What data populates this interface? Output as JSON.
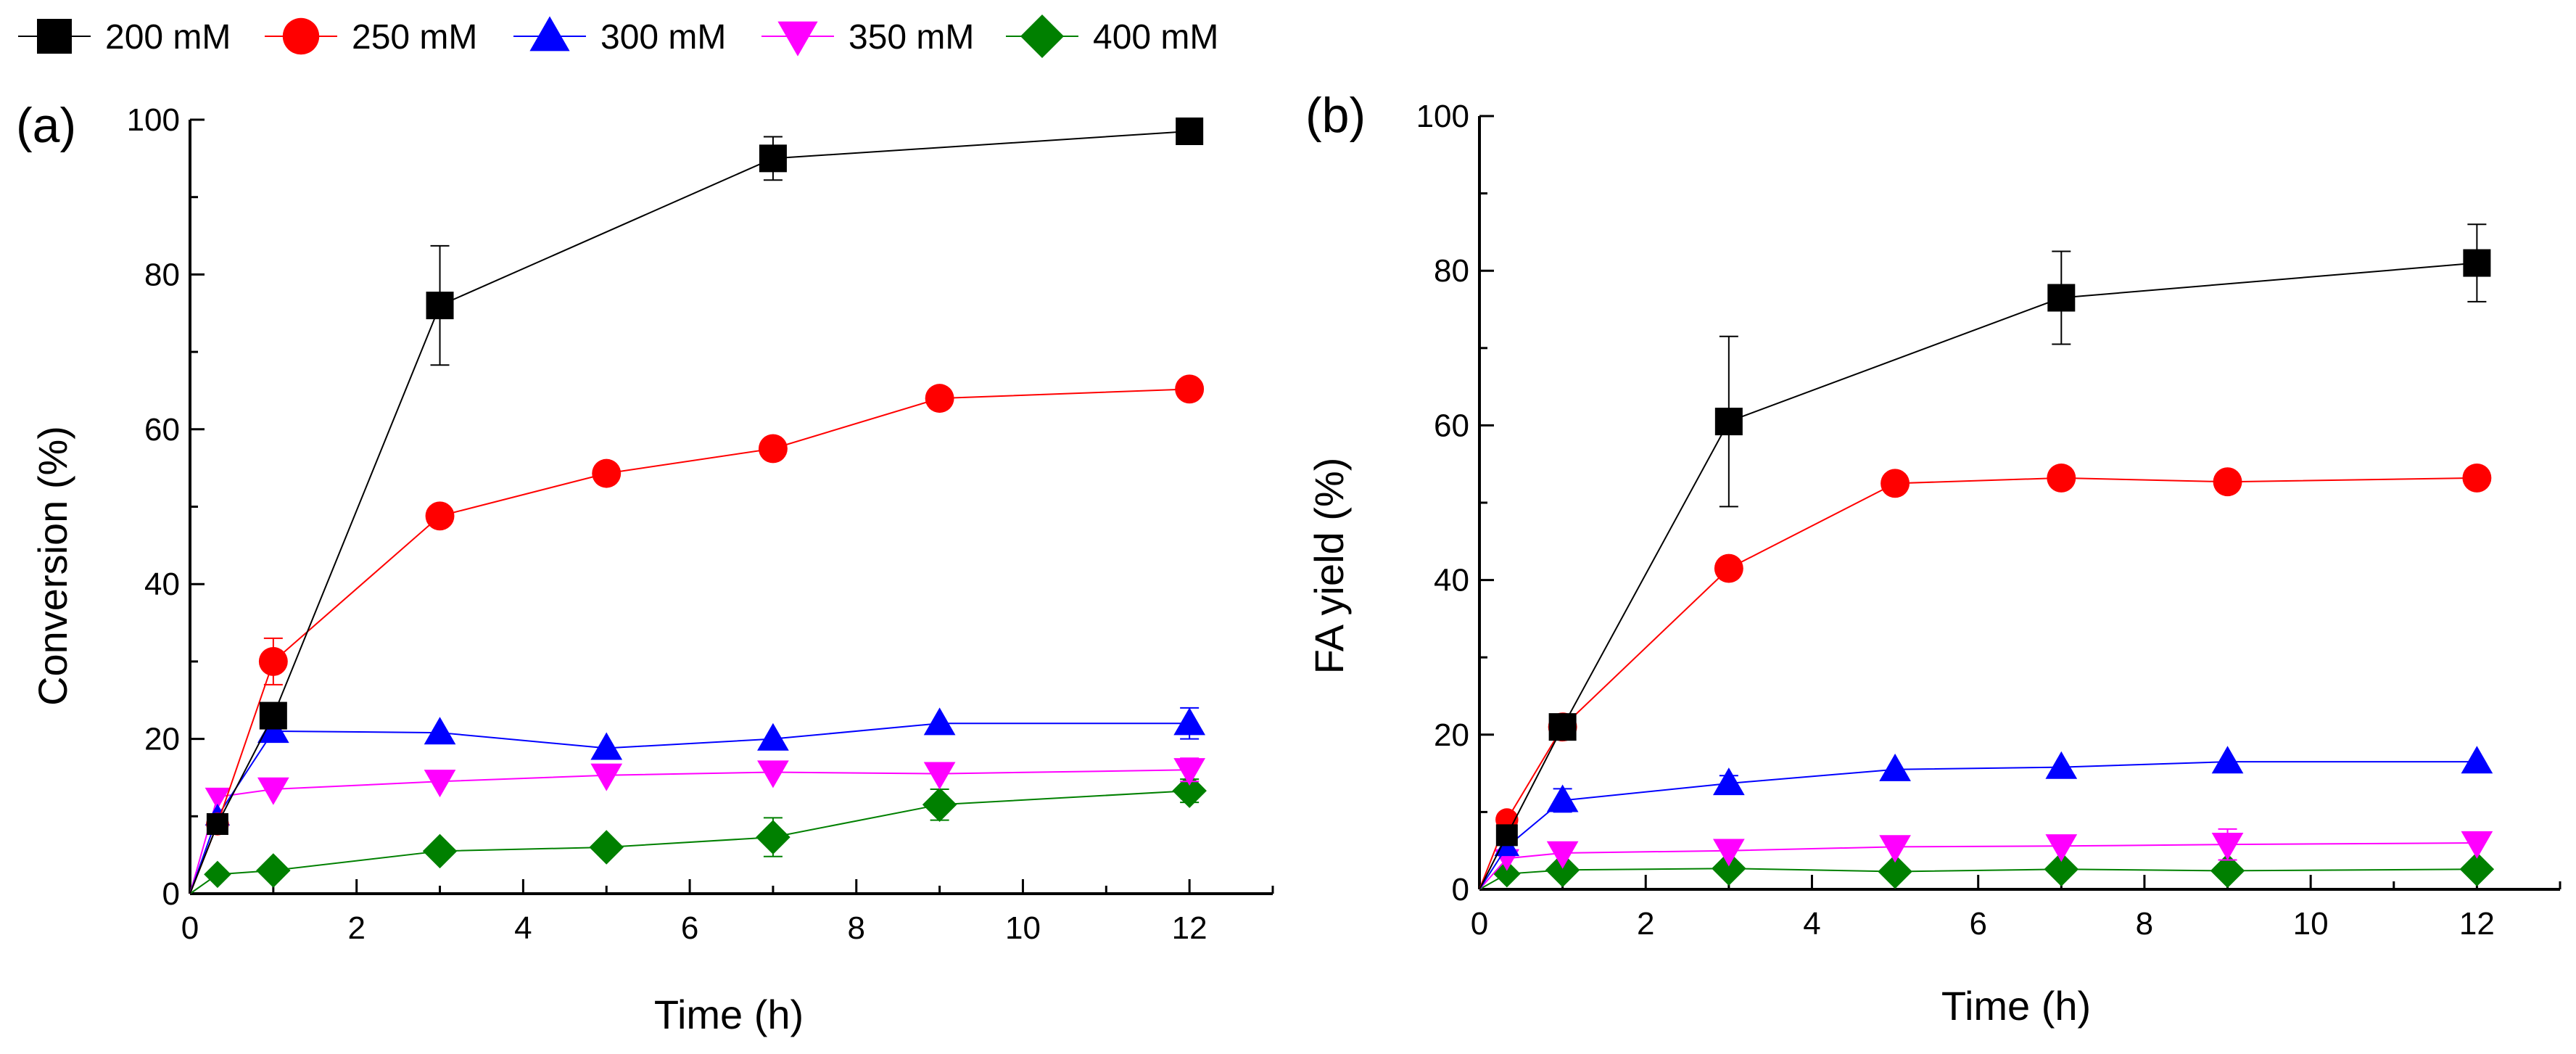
{
  "legend": {
    "position": "top",
    "entries": [
      {
        "label": "200 mM",
        "color": "#000000",
        "marker": "square"
      },
      {
        "label": "250 mM",
        "color": "#ff0000",
        "marker": "circle"
      },
      {
        "label": "300 mM",
        "color": "#0000ff",
        "marker": "triangle-up"
      },
      {
        "label": "350 mM",
        "color": "#ff00ff",
        "marker": "triangle-down"
      },
      {
        "label": "400 mM",
        "color": "#008000",
        "marker": "diamond"
      }
    ]
  },
  "chart_data": [
    {
      "type": "line",
      "panel_label": "(a)",
      "title": "",
      "xlabel": "Time (h)",
      "ylabel": "Conversion (%)",
      "xlim": [
        0,
        13
      ],
      "ylim": [
        0,
        100
      ],
      "xticks": [
        0,
        2,
        4,
        6,
        8,
        10,
        12
      ],
      "yticks": [
        0,
        20,
        40,
        60,
        80,
        100
      ],
      "grid": false,
      "series": [
        {
          "name": "200 mM",
          "x": [
            0,
            0.33,
            1,
            3,
            7,
            12
          ],
          "y": [
            0,
            9,
            23,
            76,
            95,
            98.5
          ],
          "err": [
            0,
            0,
            0,
            7.7,
            2.8,
            0
          ]
        },
        {
          "name": "250 mM",
          "x": [
            0,
            0.33,
            1,
            3,
            5,
            7,
            9,
            12
          ],
          "y": [
            0,
            9,
            30,
            48.8,
            54.3,
            57.5,
            64,
            65.2
          ],
          "err": [
            0,
            0,
            3,
            0,
            0,
            0,
            0,
            0
          ]
        },
        {
          "name": "300 mM",
          "x": [
            0,
            0.33,
            1,
            3,
            5,
            7,
            9,
            12
          ],
          "y": [
            0,
            10,
            21,
            20.8,
            18.8,
            20,
            22,
            22
          ],
          "err": [
            0,
            0,
            0,
            0,
            0,
            0,
            0,
            2
          ]
        },
        {
          "name": "350 mM",
          "x": [
            0,
            0.33,
            1,
            3,
            5,
            7,
            9,
            12
          ],
          "y": [
            0,
            12.5,
            13.5,
            14.5,
            15.3,
            15.7,
            15.5,
            16
          ],
          "err": [
            0,
            0,
            0,
            0,
            0,
            0,
            0,
            1.5
          ]
        },
        {
          "name": "400 mM",
          "x": [
            0,
            0.33,
            1,
            3,
            5,
            7,
            9,
            12
          ],
          "y": [
            0,
            2.5,
            3,
            5.5,
            6,
            7.3,
            11.5,
            13.3
          ],
          "err": [
            0,
            0,
            0,
            0,
            0,
            2.5,
            2,
            1.5
          ]
        }
      ]
    },
    {
      "type": "line",
      "panel_label": "(b)",
      "title": "",
      "xlabel": "Time (h)",
      "ylabel": "FA yield (%)",
      "xlim": [
        0,
        13
      ],
      "ylim": [
        0,
        100
      ],
      "xticks": [
        0,
        2,
        4,
        6,
        8,
        10,
        12
      ],
      "yticks": [
        0,
        20,
        40,
        60,
        80,
        100
      ],
      "grid": false,
      "series": [
        {
          "name": "200 mM",
          "x": [
            0,
            0.33,
            1,
            3,
            7,
            12
          ],
          "y": [
            0,
            7,
            21,
            60.5,
            76.5,
            81
          ],
          "err": [
            0,
            0,
            0,
            11,
            6,
            5
          ]
        },
        {
          "name": "250 mM",
          "x": [
            0,
            0.33,
            1,
            3,
            5,
            7,
            9,
            12
          ],
          "y": [
            0,
            9,
            21,
            41.5,
            52.5,
            53.2,
            52.7,
            53.2
          ],
          "err": [
            0,
            0,
            0,
            0,
            0,
            0,
            0,
            0
          ]
        },
        {
          "name": "300 mM",
          "x": [
            0,
            0.33,
            1,
            3,
            5,
            7,
            9,
            12
          ],
          "y": [
            0,
            5.5,
            11.5,
            13.7,
            15.5,
            15.8,
            16.5,
            16.5
          ],
          "err": [
            0,
            0,
            1.5,
            1,
            0,
            0,
            0,
            0
          ]
        },
        {
          "name": "350 mM",
          "x": [
            0,
            0.33,
            1,
            3,
            5,
            7,
            9,
            12
          ],
          "y": [
            0,
            4,
            4.7,
            5,
            5.5,
            5.6,
            5.8,
            6
          ],
          "err": [
            0,
            0,
            0,
            0,
            0,
            0,
            2,
            0
          ]
        },
        {
          "name": "400 mM",
          "x": [
            0,
            0.33,
            1,
            3,
            5,
            7,
            9,
            12
          ],
          "y": [
            0,
            2,
            2.5,
            2.7,
            2.3,
            2.6,
            2.4,
            2.6
          ],
          "err": [
            0,
            0,
            0,
            0,
            0,
            0,
            0,
            0
          ]
        }
      ]
    }
  ]
}
